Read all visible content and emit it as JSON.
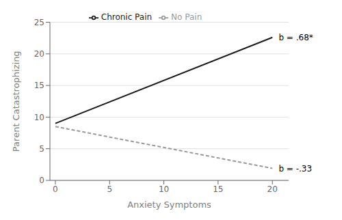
{
  "chart_data": {
    "type": "line",
    "xlabel": "Anxiety Symptoms",
    "ylabel": "Parent Catastrophizing",
    "x": [
      0,
      20
    ],
    "series": [
      {
        "name": "Chronic Pain",
        "color": "#1a1a1a",
        "values": [
          9.0,
          22.6
        ],
        "line_style": "solid"
      },
      {
        "name": "No Pain",
        "color": "#999999",
        "values": [
          8.5,
          1.9
        ],
        "line_style": "dashed"
      }
    ],
    "xlim": [
      -0.5,
      21.5
    ],
    "xticks": [
      0,
      5,
      10,
      15,
      20
    ],
    "ylim": [
      0,
      25
    ],
    "yticks": [
      0,
      5,
      10,
      15,
      20,
      25
    ],
    "grid": "y",
    "legend": "top",
    "annotations": [
      {
        "text": "b = .68*",
        "x": 20.2,
        "y": 22.6
      },
      {
        "text": "b = -.33",
        "x": 20.2,
        "y": 1.9
      }
    ]
  }
}
